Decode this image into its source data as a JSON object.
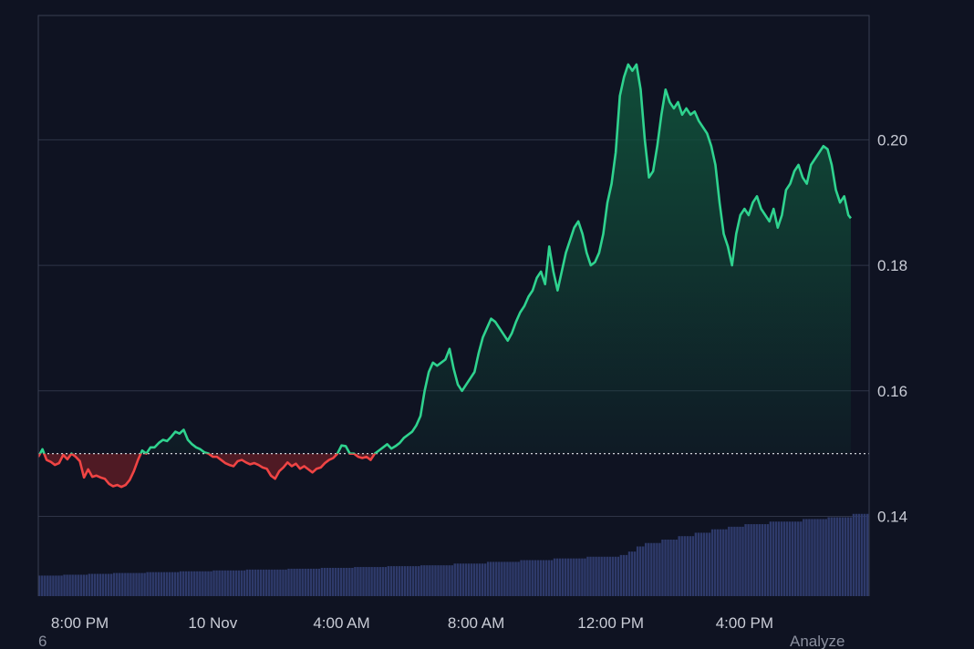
{
  "theme": {
    "background": "#0f1322",
    "frame": "#3a3f52",
    "grid": "#2f3447",
    "up_color": "#2fd38f",
    "up_fill": "#10503a",
    "down_color": "#ef4444",
    "down_fill": "#5a1c24",
    "baseline_color": "#e6e8ee",
    "volume_color": "#2e3a6a"
  },
  "chart_data": {
    "type": "area",
    "baseline": 0.15,
    "ylim": [
      0.1273,
      0.2198
    ],
    "xlim": [
      0,
      1000
    ],
    "y_ticks": [
      {
        "value": 0.14,
        "label": "0.14"
      },
      {
        "value": 0.16,
        "label": "0.16"
      },
      {
        "value": 0.18,
        "label": "0.18"
      },
      {
        "value": 0.2,
        "label": "0.20"
      }
    ],
    "x_ticks": [
      {
        "x": 50,
        "label": "8:00 PM"
      },
      {
        "x": 210,
        "label": "10 Nov"
      },
      {
        "x": 365,
        "label": "4:00 AM"
      },
      {
        "x": 527,
        "label": "8:00 AM"
      },
      {
        "x": 689,
        "label": "12:00 PM"
      },
      {
        "x": 850,
        "label": "4:00 PM"
      }
    ],
    "series": [
      {
        "points": [
          [
            0,
            0.1495
          ],
          [
            5,
            0.1507
          ],
          [
            10,
            0.149
          ],
          [
            15,
            0.1487
          ],
          [
            20,
            0.1482
          ],
          [
            25,
            0.1485
          ],
          [
            30,
            0.1498
          ],
          [
            35,
            0.1491
          ],
          [
            40,
            0.15
          ],
          [
            45,
            0.1495
          ],
          [
            50,
            0.1488
          ],
          [
            55,
            0.1462
          ],
          [
            60,
            0.1475
          ],
          [
            65,
            0.1463
          ],
          [
            70,
            0.1465
          ],
          [
            75,
            0.1462
          ],
          [
            80,
            0.146
          ],
          [
            85,
            0.1452
          ],
          [
            90,
            0.1448
          ],
          [
            95,
            0.145
          ],
          [
            100,
            0.1447
          ],
          [
            105,
            0.145
          ],
          [
            110,
            0.1458
          ],
          [
            115,
            0.1472
          ],
          [
            120,
            0.149
          ],
          [
            125,
            0.1505
          ],
          [
            130,
            0.15
          ],
          [
            135,
            0.151
          ],
          [
            140,
            0.151
          ],
          [
            145,
            0.1517
          ],
          [
            150,
            0.1522
          ],
          [
            155,
            0.152
          ],
          [
            160,
            0.1527
          ],
          [
            165,
            0.1535
          ],
          [
            170,
            0.1532
          ],
          [
            175,
            0.1538
          ],
          [
            180,
            0.1522
          ],
          [
            185,
            0.1515
          ],
          [
            190,
            0.151
          ],
          [
            195,
            0.1507
          ],
          [
            200,
            0.1502
          ],
          [
            205,
            0.15
          ],
          [
            210,
            0.1495
          ],
          [
            215,
            0.1495
          ],
          [
            220,
            0.149
          ],
          [
            225,
            0.1485
          ],
          [
            230,
            0.1482
          ],
          [
            235,
            0.148
          ],
          [
            240,
            0.1488
          ],
          [
            245,
            0.149
          ],
          [
            250,
            0.1486
          ],
          [
            255,
            0.1483
          ],
          [
            260,
            0.1485
          ],
          [
            265,
            0.1482
          ],
          [
            270,
            0.1478
          ],
          [
            275,
            0.1476
          ],
          [
            280,
            0.1465
          ],
          [
            285,
            0.146
          ],
          [
            290,
            0.1472
          ],
          [
            295,
            0.1478
          ],
          [
            300,
            0.1486
          ],
          [
            305,
            0.148
          ],
          [
            310,
            0.1484
          ],
          [
            315,
            0.1476
          ],
          [
            320,
            0.148
          ],
          [
            325,
            0.1475
          ],
          [
            330,
            0.147
          ],
          [
            335,
            0.1476
          ],
          [
            340,
            0.1478
          ],
          [
            345,
            0.1485
          ],
          [
            350,
            0.149
          ],
          [
            355,
            0.1493
          ],
          [
            360,
            0.15
          ],
          [
            365,
            0.1513
          ],
          [
            370,
            0.1512
          ],
          [
            375,
            0.15
          ],
          [
            380,
            0.15
          ],
          [
            385,
            0.1495
          ],
          [
            390,
            0.1493
          ],
          [
            395,
            0.1495
          ],
          [
            400,
            0.149
          ],
          [
            405,
            0.15
          ],
          [
            410,
            0.1505
          ],
          [
            415,
            0.151
          ],
          [
            420,
            0.1515
          ],
          [
            425,
            0.1508
          ],
          [
            430,
            0.1512
          ],
          [
            435,
            0.1517
          ],
          [
            440,
            0.1525
          ],
          [
            445,
            0.153
          ],
          [
            450,
            0.1535
          ],
          [
            455,
            0.1545
          ],
          [
            460,
            0.156
          ],
          [
            465,
            0.16
          ],
          [
            470,
            0.163
          ],
          [
            475,
            0.1645
          ],
          [
            480,
            0.164
          ],
          [
            485,
            0.1645
          ],
          [
            490,
            0.165
          ],
          [
            495,
            0.1667
          ],
          [
            500,
            0.1635
          ],
          [
            505,
            0.161
          ],
          [
            510,
            0.16
          ],
          [
            515,
            0.161
          ],
          [
            520,
            0.162
          ],
          [
            525,
            0.163
          ],
          [
            530,
            0.166
          ],
          [
            535,
            0.1685
          ],
          [
            540,
            0.17
          ],
          [
            545,
            0.1715
          ],
          [
            550,
            0.171
          ],
          [
            555,
            0.17
          ],
          [
            560,
            0.169
          ],
          [
            565,
            0.168
          ],
          [
            570,
            0.1692
          ],
          [
            575,
            0.171
          ],
          [
            580,
            0.1725
          ],
          [
            585,
            0.1735
          ],
          [
            590,
            0.175
          ],
          [
            595,
            0.176
          ],
          [
            600,
            0.178
          ],
          [
            605,
            0.179
          ],
          [
            610,
            0.177
          ],
          [
            615,
            0.183
          ],
          [
            620,
            0.179
          ],
          [
            625,
            0.176
          ],
          [
            630,
            0.179
          ],
          [
            635,
            0.182
          ],
          [
            640,
            0.184
          ],
          [
            645,
            0.186
          ],
          [
            650,
            0.187
          ],
          [
            655,
            0.185
          ],
          [
            660,
            0.182
          ],
          [
            665,
            0.18
          ],
          [
            670,
            0.1805
          ],
          [
            675,
            0.182
          ],
          [
            680,
            0.185
          ],
          [
            685,
            0.19
          ],
          [
            690,
            0.193
          ],
          [
            695,
            0.198
          ],
          [
            700,
            0.207
          ],
          [
            705,
            0.21
          ],
          [
            710,
            0.212
          ],
          [
            715,
            0.211
          ],
          [
            720,
            0.212
          ],
          [
            725,
            0.208
          ],
          [
            730,
            0.2
          ],
          [
            735,
            0.194
          ],
          [
            740,
            0.195
          ],
          [
            745,
            0.199
          ],
          [
            750,
            0.204
          ],
          [
            755,
            0.208
          ],
          [
            760,
            0.206
          ],
          [
            765,
            0.205
          ],
          [
            770,
            0.206
          ],
          [
            775,
            0.204
          ],
          [
            780,
            0.205
          ],
          [
            785,
            0.204
          ],
          [
            790,
            0.2045
          ],
          [
            795,
            0.203
          ],
          [
            800,
            0.202
          ],
          [
            805,
            0.201
          ],
          [
            810,
            0.199
          ],
          [
            815,
            0.196
          ],
          [
            820,
            0.19
          ],
          [
            825,
            0.185
          ],
          [
            830,
            0.183
          ],
          [
            835,
            0.18
          ],
          [
            840,
            0.185
          ],
          [
            845,
            0.188
          ],
          [
            850,
            0.189
          ],
          [
            855,
            0.188
          ],
          [
            860,
            0.19
          ],
          [
            865,
            0.191
          ],
          [
            870,
            0.189
          ],
          [
            875,
            0.188
          ],
          [
            880,
            0.187
          ],
          [
            885,
            0.189
          ],
          [
            890,
            0.186
          ],
          [
            895,
            0.188
          ],
          [
            900,
            0.192
          ],
          [
            905,
            0.193
          ],
          [
            910,
            0.195
          ],
          [
            915,
            0.196
          ],
          [
            920,
            0.194
          ],
          [
            925,
            0.193
          ],
          [
            930,
            0.196
          ],
          [
            935,
            0.197
          ],
          [
            940,
            0.198
          ],
          [
            945,
            0.199
          ],
          [
            950,
            0.1985
          ],
          [
            955,
            0.196
          ],
          [
            960,
            0.192
          ],
          [
            965,
            0.19
          ],
          [
            970,
            0.191
          ],
          [
            975,
            0.188
          ],
          [
            978,
            0.1875
          ]
        ]
      }
    ],
    "volume": {
      "min": 0,
      "max": 100,
      "steps": [
        [
          0,
          24
        ],
        [
          30,
          25
        ],
        [
          60,
          26
        ],
        [
          90,
          27
        ],
        [
          130,
          28
        ],
        [
          170,
          29
        ],
        [
          210,
          30
        ],
        [
          250,
          31
        ],
        [
          300,
          32
        ],
        [
          340,
          33
        ],
        [
          380,
          34
        ],
        [
          420,
          35
        ],
        [
          460,
          36
        ],
        [
          500,
          38
        ],
        [
          540,
          40
        ],
        [
          580,
          42
        ],
        [
          620,
          44
        ],
        [
          660,
          46
        ],
        [
          700,
          48
        ],
        [
          710,
          52
        ],
        [
          720,
          58
        ],
        [
          730,
          62
        ],
        [
          750,
          66
        ],
        [
          770,
          70
        ],
        [
          790,
          74
        ],
        [
          810,
          78
        ],
        [
          830,
          81
        ],
        [
          850,
          84
        ],
        [
          880,
          87
        ],
        [
          920,
          90
        ],
        [
          950,
          92
        ],
        [
          978,
          92
        ],
        [
          980,
          96
        ]
      ]
    }
  },
  "footer": {
    "left_fragment": "6",
    "right_fragment": "Analyze"
  }
}
